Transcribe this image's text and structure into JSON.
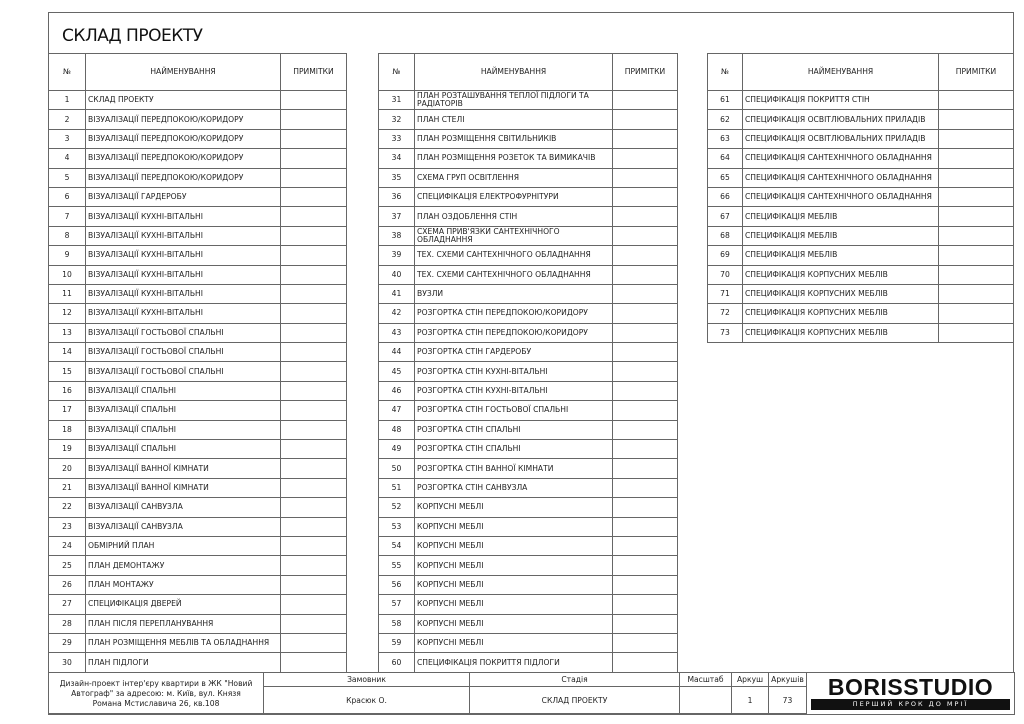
{
  "title": "СКЛАД ПРОЕКТУ",
  "headers": {
    "num": "№",
    "name": "НАЙМЕНУВАННЯ",
    "notes": "ПРИМІТКИ"
  },
  "tables": [
    [
      [
        "1",
        "СКЛАД ПРОЕКТУ"
      ],
      [
        "2",
        "ВІЗУАЛІЗАЦІЇ ПЕРЕДПОКОЮ/КОРИДОРУ"
      ],
      [
        "3",
        "ВІЗУАЛІЗАЦІЇ ПЕРЕДПОКОЮ/КОРИДОРУ"
      ],
      [
        "4",
        "ВІЗУАЛІЗАЦІЇ ПЕРЕДПОКОЮ/КОРИДОРУ"
      ],
      [
        "5",
        "ВІЗУАЛІЗАЦІЇ ПЕРЕДПОКОЮ/КОРИДОРУ"
      ],
      [
        "6",
        "ВІЗУАЛІЗАЦІЇ ГАРДЕРОБУ"
      ],
      [
        "7",
        "ВІЗУАЛІЗАЦІЇ КУХНІ-ВІТАЛЬНІ"
      ],
      [
        "8",
        "ВІЗУАЛІЗАЦІЇ КУХНІ-ВІТАЛЬНІ"
      ],
      [
        "9",
        "ВІЗУАЛІЗАЦІЇ КУХНІ-ВІТАЛЬНІ"
      ],
      [
        "10",
        "ВІЗУАЛІЗАЦІЇ КУХНІ-ВІТАЛЬНІ"
      ],
      [
        "11",
        "ВІЗУАЛІЗАЦІЇ КУХНІ-ВІТАЛЬНІ"
      ],
      [
        "12",
        "ВІЗУАЛІЗАЦІЇ КУХНІ-ВІТАЛЬНІ"
      ],
      [
        "13",
        "ВІЗУАЛІЗАЦІЇ ГОСТЬОВОЇ СПАЛЬНІ"
      ],
      [
        "14",
        "ВІЗУАЛІЗАЦІЇ ГОСТЬОВОЇ СПАЛЬНІ"
      ],
      [
        "15",
        "ВІЗУАЛІЗАЦІЇ ГОСТЬОВОЇ СПАЛЬНІ"
      ],
      [
        "16",
        "ВІЗУАЛІЗАЦІЇ СПАЛЬНІ"
      ],
      [
        "17",
        "ВІЗУАЛІЗАЦІЇ СПАЛЬНІ"
      ],
      [
        "18",
        "ВІЗУАЛІЗАЦІЇ СПАЛЬНІ"
      ],
      [
        "19",
        "ВІЗУАЛІЗАЦІЇ СПАЛЬНІ"
      ],
      [
        "20",
        "ВІЗУАЛІЗАЦІЇ ВАННОЇ КІМНАТИ"
      ],
      [
        "21",
        "ВІЗУАЛІЗАЦІЇ ВАННОЇ КІМНАТИ"
      ],
      [
        "22",
        "ВІЗУАЛІЗАЦІЇ САНВУЗЛА"
      ],
      [
        "23",
        "ВІЗУАЛІЗАЦІЇ САНВУЗЛА"
      ],
      [
        "24",
        "ОБМІРНИЙ ПЛАН"
      ],
      [
        "25",
        "ПЛАН ДЕМОНТАЖУ"
      ],
      [
        "26",
        "ПЛАН МОНТАЖУ"
      ],
      [
        "27",
        "СПЕЦИФІКАЦІЯ ДВЕРЕЙ"
      ],
      [
        "28",
        "ПЛАН ПІСЛЯ ПЕРЕПЛАНУВАННЯ"
      ],
      [
        "29",
        "ПЛАН РОЗМІЩЕННЯ МЕБЛІВ ТА ОБЛАДНАННЯ"
      ],
      [
        "30",
        "ПЛАН ПІДЛОГИ"
      ]
    ],
    [
      [
        "31",
        "ПЛАН РОЗТАШУВАННЯ ТЕПЛОЇ ПІДЛОГИ ТА РАДІАТОРІВ"
      ],
      [
        "32",
        "ПЛАН СТЕЛІ"
      ],
      [
        "33",
        "ПЛАН РОЗМІЩЕННЯ СВІТИЛЬНИКІВ"
      ],
      [
        "34",
        "ПЛАН РОЗМІЩЕННЯ РОЗЕТОК ТА ВИМИКАЧІВ"
      ],
      [
        "35",
        "СХЕМА ГРУП ОСВІТЛЕННЯ"
      ],
      [
        "36",
        "СПЕЦИФІКАЦІЯ ЕЛЕКТРОФУРНІТУРИ"
      ],
      [
        "37",
        "ПЛАН ОЗДОБЛЕННЯ СТІН"
      ],
      [
        "38",
        "СХЕМА ПРИВ'ЯЗКИ САНТЕХНІЧНОГО ОБЛАДНАННЯ"
      ],
      [
        "39",
        "ТЕХ. СХЕМИ САНТЕХНІЧНОГО ОБЛАДНАННЯ"
      ],
      [
        "40",
        "ТЕХ. СХЕМИ САНТЕХНІЧНОГО ОБЛАДНАННЯ"
      ],
      [
        "41",
        "ВУЗЛИ"
      ],
      [
        "42",
        "РОЗГОРТКА СТІН ПЕРЕДПОКОЮ/КОРИДОРУ"
      ],
      [
        "43",
        "РОЗГОРТКА СТІН ПЕРЕДПОКОЮ/КОРИДОРУ"
      ],
      [
        "44",
        "РОЗГОРТКА СТІН ГАРДЕРОБУ"
      ],
      [
        "45",
        "РОЗГОРТКА СТІН КУХНІ-ВІТАЛЬНІ"
      ],
      [
        "46",
        "РОЗГОРТКА СТІН КУХНІ-ВІТАЛЬНІ"
      ],
      [
        "47",
        "РОЗГОРТКА СТІН ГОСТЬОВОЇ СПАЛЬНІ"
      ],
      [
        "48",
        "РОЗГОРТКА СТІН СПАЛЬНІ"
      ],
      [
        "49",
        "РОЗГОРТКА СТІН СПАЛЬНІ"
      ],
      [
        "50",
        "РОЗГОРТКА СТІН ВАННОЇ КІМНАТИ"
      ],
      [
        "51",
        "РОЗГОРТКА СТІН САНВУЗЛА"
      ],
      [
        "52",
        "КОРПУСНІ МЕБЛІ"
      ],
      [
        "53",
        "КОРПУСНІ МЕБЛІ"
      ],
      [
        "54",
        "КОРПУСНІ МЕБЛІ"
      ],
      [
        "55",
        "КОРПУСНІ МЕБЛІ"
      ],
      [
        "56",
        "КОРПУСНІ МЕБЛІ"
      ],
      [
        "57",
        "КОРПУСНІ МЕБЛІ"
      ],
      [
        "58",
        "КОРПУСНІ МЕБЛІ"
      ],
      [
        "59",
        "КОРПУСНІ МЕБЛІ"
      ],
      [
        "60",
        "СПЕЦИФІКАЦІЯ ПОКРИТТЯ ПІДЛОГИ"
      ]
    ],
    [
      [
        "61",
        "СПЕЦИФІКАЦІЯ ПОКРИТТЯ СТІН"
      ],
      [
        "62",
        "СПЕЦИФІКАЦІЯ ОСВІТЛЮВАЛЬНИХ ПРИЛАДІВ"
      ],
      [
        "63",
        "СПЕЦИФІКАЦІЯ ОСВІТЛЮВАЛЬНИХ ПРИЛАДІВ"
      ],
      [
        "64",
        "СПЕЦИФІКАЦІЯ САНТЕХНІЧНОГО ОБЛАДНАННЯ"
      ],
      [
        "65",
        "СПЕЦИФІКАЦІЯ САНТЕХНІЧНОГО ОБЛАДНАННЯ"
      ],
      [
        "66",
        "СПЕЦИФІКАЦІЯ САНТЕХНІЧНОГО ОБЛАДНАННЯ"
      ],
      [
        "67",
        "СПЕЦИФІКАЦІЯ МЕБЛІВ"
      ],
      [
        "68",
        "СПЕЦИФІКАЦІЯ МЕБЛІВ"
      ],
      [
        "69",
        "СПЕЦИФІКАЦІЯ МЕБЛІВ"
      ],
      [
        "70",
        "СПЕЦИФІКАЦІЯ КОРПУСНИХ МЕБЛІВ"
      ],
      [
        "71",
        "СПЕЦИФІКАЦІЯ КОРПУСНИХ МЕБЛІВ"
      ],
      [
        "72",
        "СПЕЦИФІКАЦІЯ КОРПУСНИХ МЕБЛІВ"
      ],
      [
        "73",
        "СПЕЦИФІКАЦІЯ КОРПУСНИХ МЕБЛІВ"
      ]
    ]
  ],
  "title_block": {
    "project": "Дизайн-проект інтер'єру квартири в ЖК \"Новий Автограф\" за адресою: м. Київ, вул. Князя Романа Мстиславича 26, кв.108",
    "client_label": "Замовник",
    "client": "Красюк О.",
    "stage_label": "Стадія",
    "stage": "СКЛАД ПРОЕКТУ",
    "scale_label": "Масштаб",
    "scale": "",
    "sheet_label": "Аркуш",
    "sheet": "1",
    "sheets_label": "Аркушів",
    "sheets": "73",
    "logo": "BORISSTUDIO",
    "slogan": "ПЕРШИЙ КРОК ДО МРІЇ"
  }
}
